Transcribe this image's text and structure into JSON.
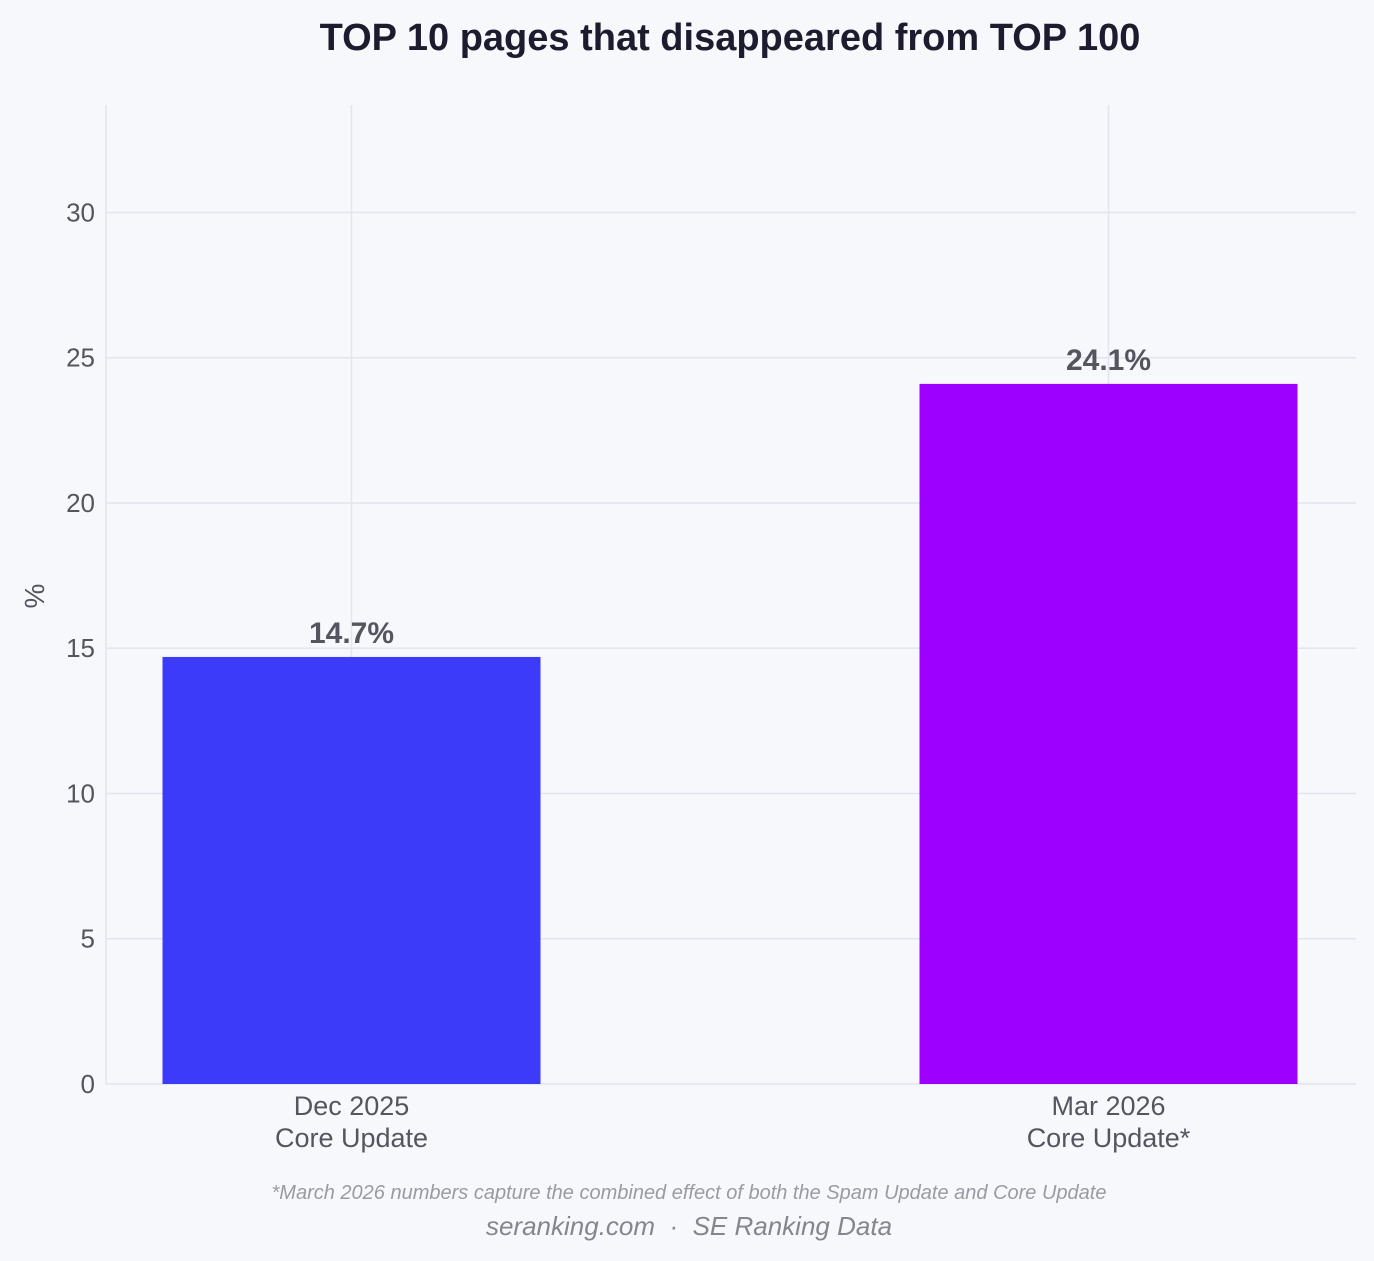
{
  "chart_data": {
    "type": "bar",
    "title": "TOP 10 pages that disappeared from TOP 100",
    "ylabel": "%",
    "xlabel": "",
    "ylim": [
      0,
      33.7
    ],
    "yticks": [
      0,
      5,
      10,
      15,
      20,
      25,
      30
    ],
    "grid": true,
    "categories": [
      {
        "line1": "Dec 2025",
        "line2": "Core Update"
      },
      {
        "line1": "Mar 2026",
        "line2": "Core Update*"
      }
    ],
    "values": [
      14.7,
      24.1
    ],
    "data_labels": [
      "14.7%",
      "24.1%"
    ],
    "colors": [
      "#3b3bf9",
      "#9e00ff"
    ]
  },
  "footnote": "*March 2026 numbers capture the combined effect of both the Spam Update and Core Update",
  "source": "seranking.com  ·  SE Ranking Data"
}
